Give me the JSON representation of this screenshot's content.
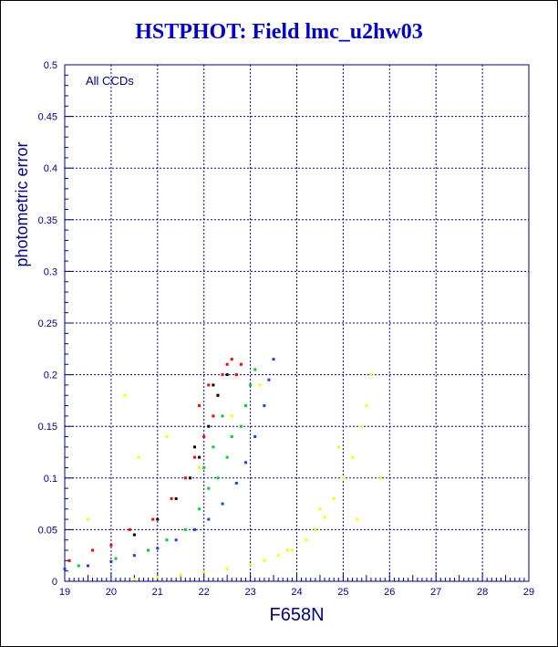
{
  "title": "HSTPHOT: Field lmc_u2hw03",
  "colors": {
    "axis": "#00008b",
    "grid": "#0000cc",
    "title": "#0000cc",
    "dark": "#000000",
    "blue": "#1e3cff",
    "green": "#00cc33",
    "red": "#ff0000",
    "yellow": "#ffff00"
  },
  "chart_data": {
    "type": "scatter",
    "title": "HSTPHOT: Field lmc_u2hw03",
    "xlabel": "F658N",
    "ylabel": "photometric error",
    "annotation": "All CCDs",
    "xlim": [
      19,
      29
    ],
    "ylim": [
      0,
      0.5
    ],
    "xticks": [
      "19",
      "20",
      "21",
      "22",
      "23",
      "24",
      "25",
      "26",
      "27",
      "28",
      "29"
    ],
    "yticks": [
      "0",
      "0.05",
      "0.1",
      "0.15",
      "0.2",
      "0.25",
      "0.3",
      "0.35",
      "0.4",
      "0.45",
      "0.5"
    ],
    "grid": true,
    "legend": "none",
    "series": [
      {
        "color": "blue",
        "x": [
          19.0,
          19.5,
          20.0,
          20.5,
          21.0,
          21.4,
          21.8,
          22.1,
          22.4,
          22.7,
          22.9,
          23.1,
          23.3,
          23.4,
          23.5
        ],
        "y": [
          0.012,
          0.015,
          0.019,
          0.025,
          0.032,
          0.04,
          0.05,
          0.06,
          0.075,
          0.095,
          0.115,
          0.14,
          0.17,
          0.195,
          0.215
        ]
      },
      {
        "color": "green",
        "x": [
          19.3,
          20.1,
          20.8,
          21.2,
          21.6,
          21.9,
          22.1,
          22.3,
          22.5,
          22.6,
          22.8,
          22.9,
          23.0,
          22.7,
          22.4,
          22.2,
          23.1,
          22.0
        ],
        "y": [
          0.015,
          0.022,
          0.03,
          0.04,
          0.05,
          0.07,
          0.09,
          0.1,
          0.12,
          0.14,
          0.15,
          0.17,
          0.19,
          0.2,
          0.16,
          0.13,
          0.205,
          0.11
        ]
      },
      {
        "color": "red",
        "x": [
          19.1,
          19.6,
          20.0,
          20.4,
          20.9,
          21.3,
          21.6,
          21.8,
          22.0,
          22.2,
          22.3,
          22.4,
          22.5,
          22.6,
          22.1,
          21.9,
          22.7,
          22.8
        ],
        "y": [
          0.02,
          0.03,
          0.035,
          0.05,
          0.06,
          0.08,
          0.1,
          0.12,
          0.14,
          0.16,
          0.18,
          0.2,
          0.21,
          0.215,
          0.19,
          0.17,
          0.2,
          0.21
        ]
      },
      {
        "color": "dark",
        "x": [
          20.5,
          21.0,
          21.4,
          21.7,
          21.9,
          22.1,
          22.3,
          22.5,
          22.2,
          21.8
        ],
        "y": [
          0.045,
          0.06,
          0.08,
          0.1,
          0.12,
          0.15,
          0.18,
          0.2,
          0.19,
          0.13
        ]
      },
      {
        "color": "yellow",
        "x": [
          20.5,
          21.0,
          21.5,
          22.0,
          22.5,
          23.0,
          23.3,
          23.6,
          23.9,
          24.2,
          24.4,
          24.6,
          24.8,
          25.0,
          25.2,
          25.4,
          25.6,
          20.3,
          20.6,
          19.5,
          21.2,
          21.9,
          22.6,
          23.2,
          24.9,
          25.3,
          25.8,
          25.5,
          24.5,
          23.8
        ],
        "y": [
          0.002,
          0.004,
          0.006,
          0.009,
          0.012,
          0.016,
          0.02,
          0.025,
          0.03,
          0.04,
          0.05,
          0.062,
          0.08,
          0.1,
          0.12,
          0.15,
          0.2,
          0.18,
          0.12,
          0.06,
          0.14,
          0.11,
          0.16,
          0.19,
          0.13,
          0.06,
          0.1,
          0.17,
          0.07,
          0.03
        ]
      }
    ]
  }
}
